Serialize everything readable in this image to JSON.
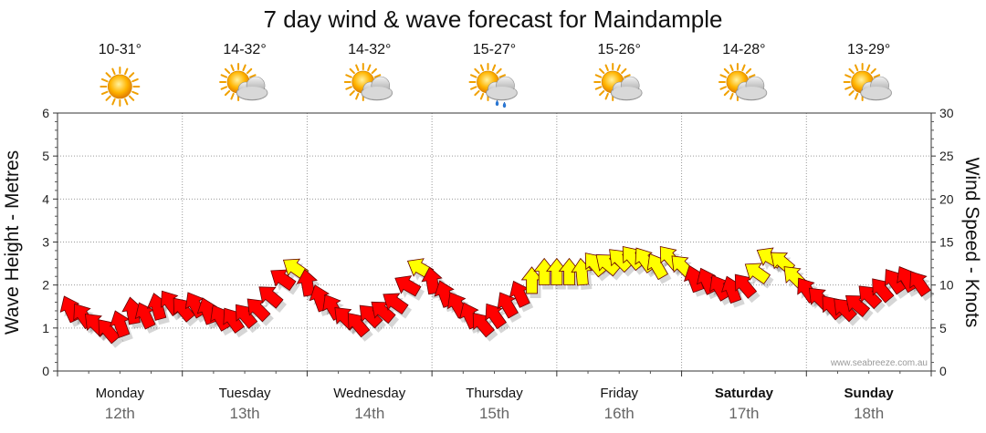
{
  "chart_data": {
    "type": "scatter",
    "title": "7 day wind & wave forecast for Maindample",
    "y_left_label": "Wave Height - Metres",
    "y_right_label": "Wind Speed - Knots",
    "y_left_ticks": [
      "0",
      "1",
      "2",
      "3",
      "4",
      "5",
      "6"
    ],
    "y_right_ticks": [
      "0",
      "5",
      "10",
      "15",
      "20",
      "25",
      "30"
    ],
    "ylim_left": [
      0,
      6
    ],
    "ylim_right": [
      0,
      30
    ],
    "grid": true,
    "credit": "www.seabreeze.com.au",
    "colors": {
      "red": "#ff0000",
      "yellow": "#ffff00",
      "outline": "#660000"
    },
    "days": [
      {
        "name": "Monday",
        "date": "12th",
        "temp": "10-31°",
        "icon": "sunny-icon",
        "bold": false
      },
      {
        "name": "Tuesday",
        "date": "13th",
        "temp": "14-32°",
        "icon": "partly-cloudy-icon",
        "bold": false
      },
      {
        "name": "Wednesday",
        "date": "14th",
        "temp": "14-32°",
        "icon": "partly-cloudy-icon",
        "bold": false
      },
      {
        "name": "Thursday",
        "date": "15th",
        "temp": "15-27°",
        "icon": "cloudy-showers-icon",
        "bold": false
      },
      {
        "name": "Friday",
        "date": "16th",
        "temp": "15-26°",
        "icon": "partly-cloudy-icon",
        "bold": false
      },
      {
        "name": "Saturday",
        "date": "17th",
        "temp": "14-28°",
        "icon": "partly-cloudy-icon",
        "bold": true
      },
      {
        "name": "Sunday",
        "date": "18th",
        "temp": "13-29°",
        "icon": "partly-cloudy-icon",
        "bold": true
      }
    ],
    "series": [
      {
        "name": "wind",
        "points": [
          {
            "t": 0.1,
            "v": 1.45,
            "c": "red",
            "a": -25
          },
          {
            "t": 0.2,
            "v": 1.3,
            "c": "red",
            "a": -35
          },
          {
            "t": 0.3,
            "v": 1.1,
            "c": "red",
            "a": -45
          },
          {
            "t": 0.4,
            "v": 0.95,
            "c": "red",
            "a": -40
          },
          {
            "t": 0.5,
            "v": 1.1,
            "c": "red",
            "a": -20
          },
          {
            "t": 0.6,
            "v": 1.4,
            "c": "red",
            "a": -10
          },
          {
            "t": 0.7,
            "v": 1.3,
            "c": "red",
            "a": -25
          },
          {
            "t": 0.8,
            "v": 1.5,
            "c": "red",
            "a": -15
          },
          {
            "t": 0.9,
            "v": 1.6,
            "c": "red",
            "a": -35
          },
          {
            "t": 1.0,
            "v": 1.45,
            "c": "red",
            "a": -40
          },
          {
            "t": 1.1,
            "v": 1.55,
            "c": "red",
            "a": -30
          },
          {
            "t": 1.2,
            "v": 1.4,
            "c": "red",
            "a": -20
          },
          {
            "t": 1.3,
            "v": 1.25,
            "c": "red",
            "a": -30
          },
          {
            "t": 1.4,
            "v": 1.2,
            "c": "red",
            "a": -35
          },
          {
            "t": 1.5,
            "v": 1.3,
            "c": "red",
            "a": -40
          },
          {
            "t": 1.6,
            "v": 1.45,
            "c": "red",
            "a": -45
          },
          {
            "t": 1.7,
            "v": 1.75,
            "c": "red",
            "a": -50
          },
          {
            "t": 1.8,
            "v": 2.15,
            "c": "red",
            "a": -55
          },
          {
            "t": 1.9,
            "v": 2.4,
            "c": "yellow",
            "a": -55
          },
          {
            "t": 2.0,
            "v": 2.05,
            "c": "red",
            "a": -10
          },
          {
            "t": 2.1,
            "v": 1.7,
            "c": "red",
            "a": -20
          },
          {
            "t": 2.2,
            "v": 1.5,
            "c": "red",
            "a": -30
          },
          {
            "t": 2.3,
            "v": 1.25,
            "c": "red",
            "a": -45
          },
          {
            "t": 2.4,
            "v": 1.1,
            "c": "red",
            "a": -40
          },
          {
            "t": 2.5,
            "v": 1.3,
            "c": "red",
            "a": -45
          },
          {
            "t": 2.6,
            "v": 1.4,
            "c": "red",
            "a": -50
          },
          {
            "t": 2.7,
            "v": 1.6,
            "c": "red",
            "a": -55
          },
          {
            "t": 2.8,
            "v": 2.0,
            "c": "red",
            "a": -60
          },
          {
            "t": 2.9,
            "v": 2.4,
            "c": "yellow",
            "a": -60
          },
          {
            "t": 3.0,
            "v": 2.1,
            "c": "red",
            "a": -10
          },
          {
            "t": 3.1,
            "v": 1.8,
            "c": "red",
            "a": -20
          },
          {
            "t": 3.2,
            "v": 1.55,
            "c": "red",
            "a": -30
          },
          {
            "t": 3.3,
            "v": 1.3,
            "c": "red",
            "a": -25
          },
          {
            "t": 3.4,
            "v": 1.1,
            "c": "red",
            "a": -40
          },
          {
            "t": 3.5,
            "v": 1.3,
            "c": "red",
            "a": -35
          },
          {
            "t": 3.6,
            "v": 1.55,
            "c": "red",
            "a": -30
          },
          {
            "t": 3.7,
            "v": 1.8,
            "c": "red",
            "a": -25
          },
          {
            "t": 3.8,
            "v": 2.1,
            "c": "yellow",
            "a": 0
          },
          {
            "t": 3.9,
            "v": 2.3,
            "c": "yellow",
            "a": 0
          },
          {
            "t": 4.0,
            "v": 2.3,
            "c": "yellow",
            "a": 0
          },
          {
            "t": 4.1,
            "v": 2.3,
            "c": "yellow",
            "a": 0
          },
          {
            "t": 4.2,
            "v": 2.3,
            "c": "yellow",
            "a": -5
          },
          {
            "t": 4.3,
            "v": 2.5,
            "c": "yellow",
            "a": -40
          },
          {
            "t": 4.4,
            "v": 2.5,
            "c": "yellow",
            "a": -50
          },
          {
            "t": 4.5,
            "v": 2.6,
            "c": "yellow",
            "a": -45
          },
          {
            "t": 4.6,
            "v": 2.65,
            "c": "yellow",
            "a": -40
          },
          {
            "t": 4.7,
            "v": 2.6,
            "c": "yellow",
            "a": -35
          },
          {
            "t": 4.8,
            "v": 2.45,
            "c": "yellow",
            "a": -30
          },
          {
            "t": 4.9,
            "v": 2.65,
            "c": "yellow",
            "a": -40
          },
          {
            "t": 5.0,
            "v": 2.45,
            "c": "yellow",
            "a": -45
          },
          {
            "t": 5.1,
            "v": 2.15,
            "c": "red",
            "a": -20
          },
          {
            "t": 5.2,
            "v": 2.1,
            "c": "red",
            "a": -25
          },
          {
            "t": 5.3,
            "v": 1.95,
            "c": "red",
            "a": -30
          },
          {
            "t": 5.4,
            "v": 1.9,
            "c": "red",
            "a": -20
          },
          {
            "t": 5.5,
            "v": 2.0,
            "c": "red",
            "a": -40
          },
          {
            "t": 5.6,
            "v": 2.3,
            "c": "yellow",
            "a": -55
          },
          {
            "t": 5.7,
            "v": 2.65,
            "c": "yellow",
            "a": -60
          },
          {
            "t": 5.8,
            "v": 2.55,
            "c": "yellow",
            "a": -50
          },
          {
            "t": 5.9,
            "v": 2.2,
            "c": "yellow",
            "a": -45
          },
          {
            "t": 6.0,
            "v": 1.9,
            "c": "red",
            "a": -35
          },
          {
            "t": 6.1,
            "v": 1.7,
            "c": "red",
            "a": -45
          },
          {
            "t": 6.2,
            "v": 1.5,
            "c": "red",
            "a": -40
          },
          {
            "t": 6.3,
            "v": 1.45,
            "c": "red",
            "a": -45
          },
          {
            "t": 6.4,
            "v": 1.55,
            "c": "red",
            "a": -50
          },
          {
            "t": 6.5,
            "v": 1.75,
            "c": "red",
            "a": -45
          },
          {
            "t": 6.6,
            "v": 1.9,
            "c": "red",
            "a": -40
          },
          {
            "t": 6.7,
            "v": 2.1,
            "c": "red",
            "a": -35
          },
          {
            "t": 6.8,
            "v": 2.15,
            "c": "red",
            "a": -30
          },
          {
            "t": 6.9,
            "v": 2.05,
            "c": "red",
            "a": -35
          }
        ]
      }
    ]
  }
}
